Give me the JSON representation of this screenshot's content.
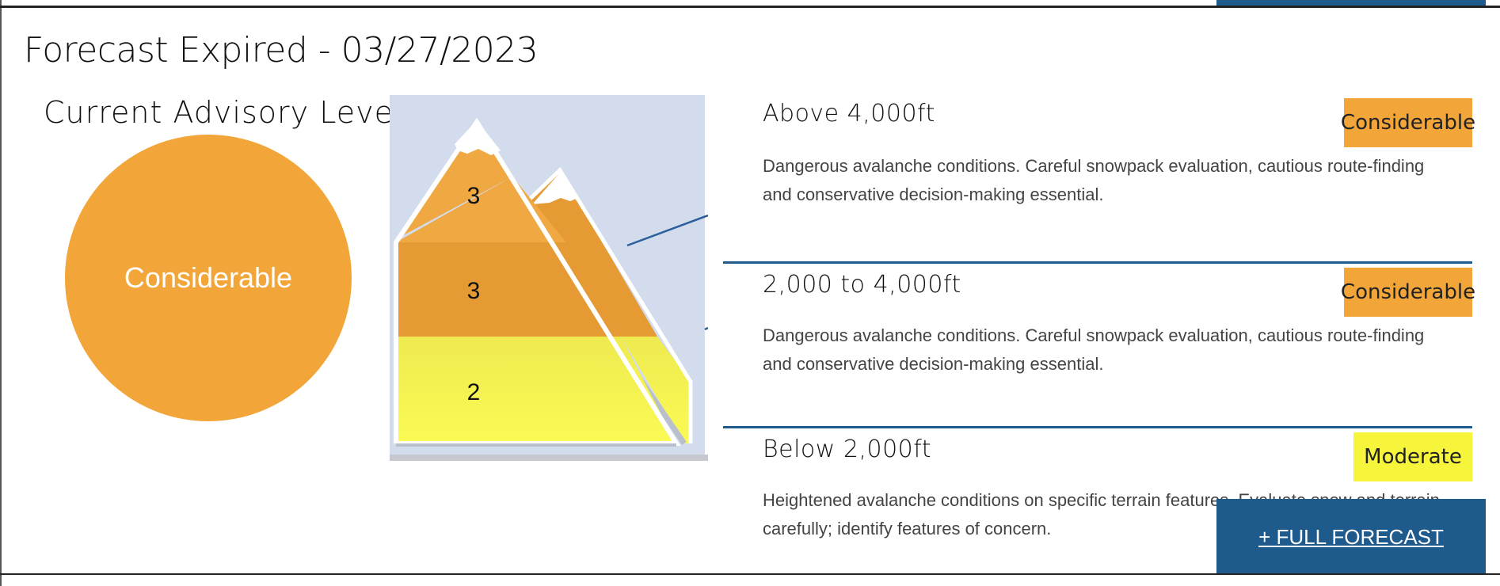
{
  "forecast": {
    "title": "Forecast Expired - 03/27/2023"
  },
  "advisory": {
    "heading": "Current Advisory Level",
    "level": "Considerable",
    "color": "#f2a63a"
  },
  "pyramid": {
    "upper_num": "3",
    "middle_num": "3",
    "lower_num": "2"
  },
  "zones": [
    {
      "name": "Above 4,000ft",
      "rating": "Considerable",
      "color": "#f2a63a",
      "description": "Dangerous avalanche conditions. Careful snowpack evaluation, cautious route-finding and conservative decision-making essential."
    },
    {
      "name": "2,000 to 4,000ft",
      "rating": "Considerable",
      "color": "#f2a63a",
      "description": "Dangerous avalanche conditions. Careful snowpack evaluation, cautious route-finding and conservative decision-making essential."
    },
    {
      "name": "Below 2,000ft",
      "rating": "Moderate",
      "color": "#f6f53c",
      "description": "Heightened avalanche conditions on specific terrain features. Evaluate snow and terrain carefully; identify features of concern."
    }
  ],
  "full_forecast": {
    "label": "+ FULL FORECAST"
  },
  "colors": {
    "brand": "#1f5a8c"
  }
}
